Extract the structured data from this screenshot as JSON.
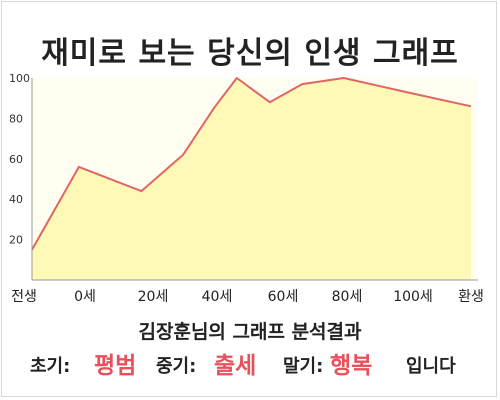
{
  "header": {
    "title": "재미로 보는 당신의 인생 그래프"
  },
  "chart_data": {
    "type": "area",
    "title": "재미로 보는 당신의 인생 그래프",
    "xlabel": "",
    "ylabel": "",
    "x_ticks": [
      "전생",
      "0세",
      "20세",
      "40세",
      "60세",
      "80세",
      "100세",
      "환생"
    ],
    "y_ticks": [
      20,
      40,
      60,
      80,
      100
    ],
    "ylim": [
      0,
      100
    ],
    "grid": false,
    "legend": "none",
    "colors": {
      "line": "#e06666",
      "fill": "#fff9b8",
      "background": "#fffef0"
    },
    "series": [
      {
        "x_index": [
          0,
          0.9,
          1.83,
          2.47,
          2.95,
          3.3,
          3.8,
          4.3,
          4.95,
          5.9,
          7
        ],
        "values": [
          15,
          56,
          44,
          62,
          85,
          100,
          88,
          97,
          100,
          93,
          86
        ]
      }
    ]
  },
  "summary": {
    "text": "김장훈님의 그래프 분석결과"
  },
  "stages": {
    "early_label": "초기:",
    "early_value": "평범",
    "middle_label": "중기:",
    "middle_value": "출세",
    "late_label": "말기:",
    "late_value": "행복",
    "suffix": "입니다"
  }
}
